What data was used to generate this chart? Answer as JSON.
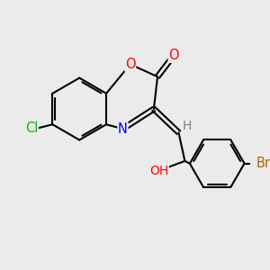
{
  "bg_color": "#ebebeb",
  "bond_color": "#000000",
  "bond_width": 1.5,
  "atom_colors": {
    "O": "#ff0000",
    "N": "#0000ff",
    "Cl": "#00bb00",
    "Br": "#aa6600",
    "H": "#708090",
    "C": "#000000"
  },
  "font_size": 10.5,
  "fig_size": [
    3.0,
    3.0
  ],
  "dpi": 100
}
